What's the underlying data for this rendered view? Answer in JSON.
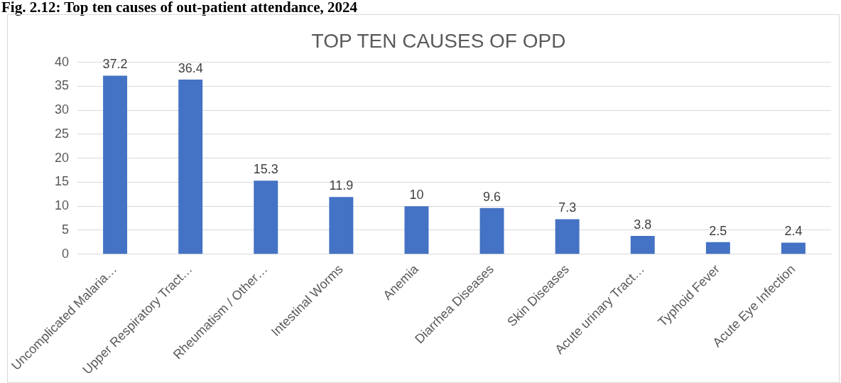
{
  "chart_data": {
    "type": "bar",
    "title": "TOP TEN CAUSES OF OPD",
    "annotations": [
      "Fig. 2.12: Top ten causes of out-patient attendance, 2024"
    ],
    "categories": [
      "Uncomplicated Malaria…",
      "Upper Respiratory Tract…",
      "Rheumatism / Other…",
      "Intestinal Worms",
      "Anemia",
      "Diarrhea Diseases",
      "Skin Diseases",
      "Acute urinary Tract…",
      "Typhoid Fever",
      "Acute Eye Infection"
    ],
    "values": [
      37.2,
      36.4,
      15.3,
      11.9,
      10,
      9.6,
      7.3,
      3.8,
      2.5,
      2.4
    ],
    "color": "#4472c4",
    "ylim": [
      0,
      40
    ],
    "yticks": [
      0,
      5,
      10,
      15,
      20,
      25,
      30,
      35,
      40
    ],
    "grid": "y",
    "data_labels": true
  }
}
